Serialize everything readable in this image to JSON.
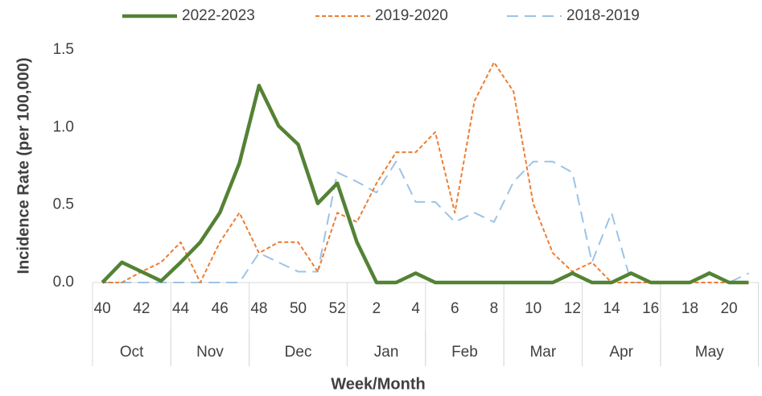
{
  "chart_data": {
    "type": "line",
    "x_label": "Week/Month",
    "y_label": "Incidence Rate (per 100,000)",
    "categories": [
      "40",
      null,
      "42",
      null,
      "44",
      null,
      "46",
      null,
      "48",
      null,
      "50",
      null,
      "52",
      null,
      "2",
      null,
      "4",
      null,
      "6",
      null,
      "8",
      null,
      "10",
      null,
      "12",
      null,
      "14",
      null,
      "16",
      null,
      "18",
      null,
      "20",
      null
    ],
    "month_groups": [
      {
        "label": "Oct",
        "weeks": 4
      },
      {
        "label": "Nov",
        "weeks": 4
      },
      {
        "label": "Dec",
        "weeks": 5
      },
      {
        "label": "Jan",
        "weeks": 4
      },
      {
        "label": "Feb",
        "weeks": 4
      },
      {
        "label": "Mar",
        "weeks": 4
      },
      {
        "label": "Apr",
        "weeks": 4
      },
      {
        "label": "May",
        "weeks": 5
      }
    ],
    "series": [
      {
        "name": "2022-2023",
        "color": "#548235",
        "style": "solid",
        "values": [
          0,
          0.13,
          0.07,
          0.01,
          0.13,
          0.26,
          0.45,
          0.77,
          1.27,
          1.01,
          0.89,
          0.51,
          0.64,
          0.26,
          0,
          0,
          0.06,
          0,
          0,
          0,
          0,
          0,
          0,
          0,
          0.06,
          0,
          0,
          0.06,
          0,
          0,
          0,
          0.06,
          0,
          0
        ]
      },
      {
        "name": "2019-2020",
        "color": "#ed7d31",
        "style": "short-dash",
        "values": [
          0,
          0,
          0.07,
          0.13,
          0.26,
          0,
          0.26,
          0.45,
          0.19,
          0.26,
          0.26,
          0.07,
          0.45,
          0.39,
          0.64,
          0.84,
          0.84,
          0.97,
          0.45,
          1.17,
          1.42,
          1.23,
          0.51,
          0.19,
          0.07,
          0.13,
          0,
          0,
          0,
          0,
          0,
          0,
          0,
          0
        ]
      },
      {
        "name": "2018-2019",
        "color": "#9dc3e6",
        "style": "long-dash",
        "values": [
          0,
          0,
          0,
          0,
          0,
          0,
          0,
          0,
          0.19,
          0.13,
          0.07,
          0.07,
          0.71,
          0.65,
          0.58,
          0.78,
          0.52,
          0.52,
          0.39,
          0.45,
          0.39,
          0.65,
          0.78,
          0.78,
          0.71,
          0.13,
          0.45,
          0,
          0,
          0,
          0,
          0.07,
          0,
          0.06
        ]
      }
    ],
    "ylim": [
      0,
      1.5
    ],
    "yticks": [
      {
        "value": 0,
        "label": "0.0"
      },
      {
        "value": 0.5,
        "label": "0.5"
      },
      {
        "value": 1,
        "label": "1.0"
      },
      {
        "value": 1.5,
        "label": "1.5"
      }
    ],
    "legend": "top",
    "grid": false
  }
}
